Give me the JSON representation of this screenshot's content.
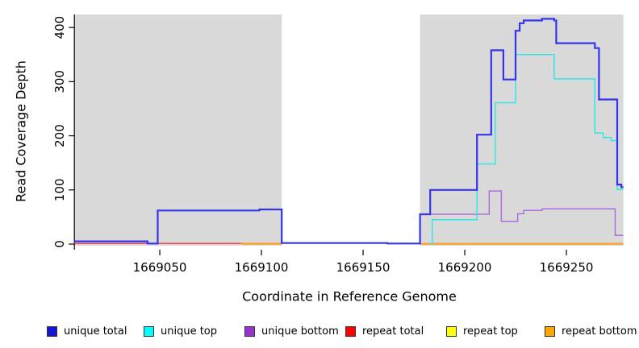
{
  "chart_data": {
    "type": "line",
    "subtype": "step-coverage-plot",
    "title": "",
    "xlabel": "Coordinate in Reference Genome",
    "ylabel": "Read Coverage Depth",
    "xlim": [
      1669008,
      1669278
    ],
    "ylim": [
      0,
      424
    ],
    "x_ticks": [
      1669050,
      1669100,
      1669150,
      1669200,
      1669250
    ],
    "y_ticks": [
      0,
      100,
      200,
      300,
      400
    ],
    "grid": false,
    "legend_position": "bottom",
    "plot_background": "#ffffff",
    "shaded_region_color": "#d9d9d9",
    "shaded_regions": [
      [
        1669008,
        1669110
      ],
      [
        1669178,
        1669278
      ]
    ],
    "series": [
      {
        "name": "repeat total",
        "color": "#ee4455",
        "width": 1.5,
        "segments": [
          [
            [
              1669008,
              1
            ],
            [
              1669110,
              1
            ]
          ]
        ]
      },
      {
        "name": "repeat bottom",
        "color": "#ff9d1c",
        "width": 2.2,
        "segments": [
          [
            [
              1669090,
              0.8
            ],
            [
              1669110,
              0.8
            ]
          ],
          [
            [
              1669178,
              0.5
            ],
            [
              1669278,
              0.5
            ]
          ]
        ]
      },
      {
        "name": "unique bottom",
        "color": "#a96fdc",
        "width": 1.5,
        "segments": [
          [
            [
              1669162,
              1
            ],
            [
              1669178,
              55
            ],
            [
              1669212,
              98
            ],
            [
              1669218,
              42
            ],
            [
              1669226,
              56
            ],
            [
              1669229,
              62
            ],
            [
              1669238,
              65
            ],
            [
              1669274,
              16
            ],
            [
              1669278,
              16
            ]
          ]
        ]
      },
      {
        "name": "unique top",
        "color": "#33e6e6",
        "width": 1.5,
        "segments": [
          [
            [
              1669183,
              1
            ],
            [
              1669184,
              45
            ],
            [
              1669206,
              148
            ],
            [
              1669215,
              261
            ],
            [
              1669225,
              350
            ],
            [
              1669244,
              305
            ],
            [
              1669264,
              205
            ],
            [
              1669268,
              197
            ],
            [
              1669272,
              191
            ],
            [
              1669275,
              101
            ],
            [
              1669278,
              101
            ]
          ]
        ]
      },
      {
        "name": "unique total",
        "color": "#3434ec",
        "width": 2.2,
        "segments": [
          [
            [
              1669008,
              5
            ],
            [
              1669044,
              1
            ],
            [
              1669049,
              62
            ],
            [
              1669099,
              64
            ],
            [
              1669110,
              2
            ],
            [
              1669162,
              1
            ],
            [
              1669178,
              55
            ],
            [
              1669183,
              100
            ],
            [
              1669206,
              202
            ],
            [
              1669213,
              358
            ],
            [
              1669219,
              304
            ],
            [
              1669225,
              394
            ],
            [
              1669227,
              408
            ],
            [
              1669229,
              413
            ],
            [
              1669238,
              416
            ],
            [
              1669244,
              413
            ],
            [
              1669245,
              371
            ],
            [
              1669264,
              362
            ],
            [
              1669266,
              267
            ],
            [
              1669275,
              110
            ],
            [
              1669277,
              105
            ],
            [
              1669278,
              105
            ]
          ]
        ]
      }
    ],
    "legend": [
      {
        "label": "unique total",
        "color": "#1414d8"
      },
      {
        "label": "unique top",
        "color": "#00ffff"
      },
      {
        "label": "unique bottom",
        "color": "#9932cc"
      },
      {
        "label": "repeat total",
        "color": "#ff0000"
      },
      {
        "label": "repeat top",
        "color": "#ffff00"
      },
      {
        "label": "repeat bottom",
        "color": "#ffa500"
      }
    ]
  }
}
